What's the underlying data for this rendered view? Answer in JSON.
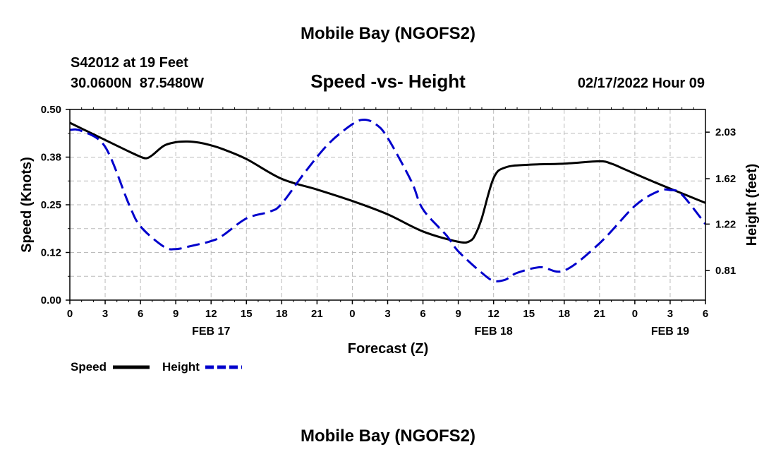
{
  "page": {
    "title_top": "Mobile Bay (NGOFS2)",
    "title_bottom": "Mobile Bay (NGOFS2)",
    "station_line": "S42012 at 19 Feet",
    "coords_line": "30.0600N  87.5480W",
    "datetime": "02/17/2022 Hour 09"
  },
  "chart_data": {
    "type": "line",
    "title": "Speed -vs- Height",
    "xlabel": "Forecast (Z)",
    "ylabel_left": "Speed (Knots)",
    "ylabel_right": "Height (feet)",
    "x_unit": "hours from 00Z Feb 17",
    "xlim": [
      0,
      54
    ],
    "ylim_left": [
      0,
      0.5
    ],
    "ylim_right": [
      0.55,
      2.23
    ],
    "x_tick_values": [
      0,
      3,
      6,
      9,
      12,
      15,
      18,
      21,
      24,
      27,
      30,
      33,
      36,
      39,
      42,
      45,
      48,
      51,
      54
    ],
    "x_tick_labels": [
      "0",
      "3",
      "6",
      "9",
      "12",
      "15",
      "18",
      "21",
      "0",
      "3",
      "6",
      "9",
      "12",
      "15",
      "18",
      "21",
      "0",
      "3",
      "6"
    ],
    "date_labels": [
      {
        "x": 12,
        "text": "FEB 17"
      },
      {
        "x": 36,
        "text": "FEB 18"
      },
      {
        "x": 51,
        "text": "FEB 19"
      }
    ],
    "y_left_ticks": [
      "0.00",
      "0.12",
      "0.25",
      "0.38",
      "0.50"
    ],
    "y_left_tick_values": [
      0,
      0.125,
      0.25,
      0.375,
      0.5
    ],
    "y_right_ticks": [
      "0.81",
      "1.22",
      "1.62",
      "2.03"
    ],
    "y_right_tick_values": [
      0.81,
      1.22,
      1.62,
      2.03
    ],
    "grid": true,
    "legend_position": "bottom-left",
    "series": [
      {
        "name": "Speed",
        "axis": "left",
        "color": "#000000",
        "style": "solid",
        "x": [
          0,
          2,
          4,
          5,
          6,
          6.5,
          7,
          8,
          9,
          10,
          11,
          12,
          13,
          15,
          18,
          21,
          24,
          27,
          30,
          33,
          34,
          34.5,
          35,
          36,
          37,
          39,
          42,
          45,
          46,
          47,
          50,
          54
        ],
        "y": [
          0.465,
          0.435,
          0.405,
          0.39,
          0.376,
          0.372,
          0.38,
          0.405,
          0.414,
          0.416,
          0.413,
          0.406,
          0.396,
          0.37,
          0.318,
          0.29,
          0.26,
          0.225,
          0.18,
          0.153,
          0.155,
          0.175,
          0.215,
          0.32,
          0.348,
          0.355,
          0.358,
          0.364,
          0.358,
          0.345,
          0.305,
          0.255
        ]
      },
      {
        "name": "Height",
        "axis": "right",
        "color": "#0000cc",
        "style": "dashed",
        "x": [
          0,
          1,
          3,
          5,
          6,
          8,
          9,
          10,
          12,
          13,
          15,
          17,
          18,
          20,
          22,
          24,
          25,
          26,
          27,
          29,
          30,
          32,
          33,
          35,
          36,
          37,
          38,
          40,
          42,
          45,
          48,
          50,
          51,
          52,
          54
        ],
        "y": [
          2.05,
          2.04,
          1.9,
          1.4,
          1.2,
          1.02,
          1.0,
          1.02,
          1.07,
          1.12,
          1.27,
          1.33,
          1.4,
          1.68,
          1.93,
          2.1,
          2.14,
          2.1,
          1.98,
          1.6,
          1.35,
          1.12,
          0.98,
          0.79,
          0.72,
          0.73,
          0.79,
          0.84,
          0.81,
          1.05,
          1.38,
          1.51,
          1.52,
          1.48,
          1.22
        ]
      }
    ]
  },
  "legend": {
    "speed_label": "Speed",
    "height_label": "Height"
  }
}
